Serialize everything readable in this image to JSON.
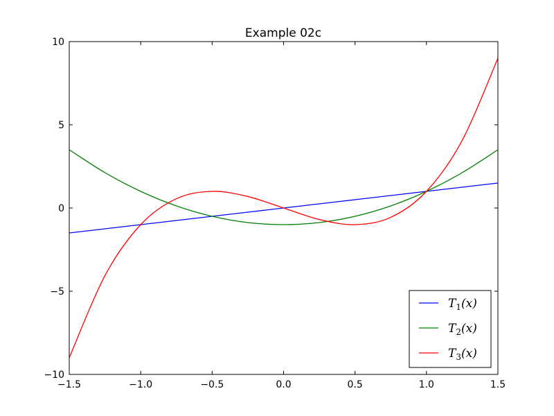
{
  "chart_data": {
    "type": "line",
    "title": "Example 02c",
    "xlabel": "",
    "ylabel": "",
    "xlim": [
      -1.5,
      1.5
    ],
    "ylim": [
      -10,
      10
    ],
    "x_ticks": [
      -1.5,
      -1.0,
      -0.5,
      0.0,
      0.5,
      1.0,
      1.5
    ],
    "x_tick_labels": [
      "−1.5",
      "−1.0",
      "−0.5",
      "0.0",
      "0.5",
      "1.0",
      "1.5"
    ],
    "y_ticks": [
      -10,
      -5,
      0,
      5,
      10
    ],
    "y_tick_labels": [
      "−10",
      "−5",
      "0",
      "5",
      "10"
    ],
    "grid": false,
    "legend_position": "bottom-right",
    "x": [
      -1.5,
      -1.25,
      -1.0,
      -0.75,
      -0.5,
      -0.25,
      0.0,
      0.25,
      0.5,
      0.75,
      1.0,
      1.25,
      1.5
    ],
    "series": [
      {
        "name": "T",
        "subscript": "1",
        "argument": "(x)",
        "color": "#0000ff",
        "values": [
          -1.5,
          -1.25,
          -1.0,
          -0.75,
          -0.5,
          -0.25,
          0.0,
          0.25,
          0.5,
          0.75,
          1.0,
          1.25,
          1.5
        ]
      },
      {
        "name": "T",
        "subscript": "2",
        "argument": "(x)",
        "color": "#008000",
        "values": [
          3.5,
          2.125,
          1.0,
          0.125,
          -0.5,
          -0.875,
          -1.0,
          -0.875,
          -0.5,
          0.125,
          1.0,
          2.125,
          3.5
        ]
      },
      {
        "name": "T",
        "subscript": "3",
        "argument": "(x)",
        "color": "#ff0000",
        "values": [
          -9.0,
          -4.06,
          -1.0,
          0.56,
          1.0,
          0.69,
          0.0,
          -0.69,
          -1.0,
          -0.56,
          1.0,
          4.06,
          9.0
        ]
      }
    ]
  }
}
